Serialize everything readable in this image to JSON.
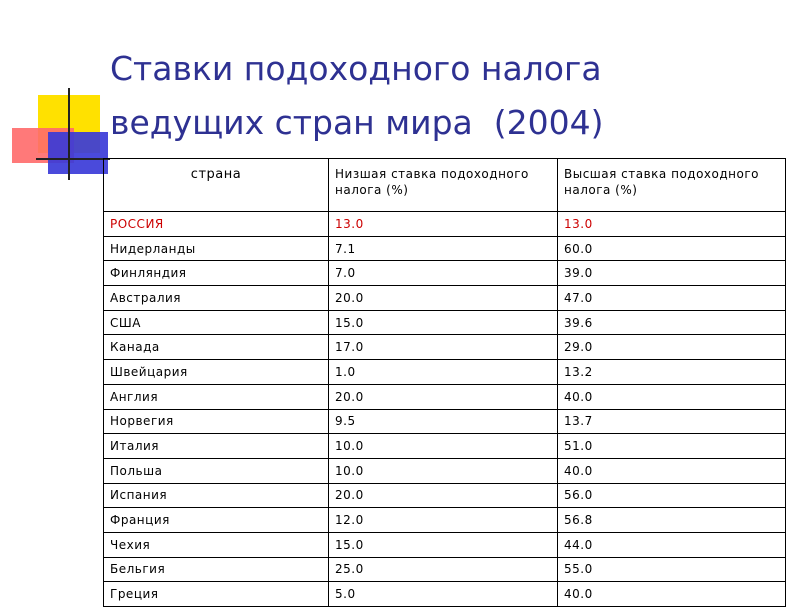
{
  "title": {
    "line1": "Ставки подоходного налога",
    "line2": "ведущих стран мира  (2004)"
  },
  "table": {
    "headers": [
      "страна",
      "Низшая ставка подоходного налога (%)",
      "Высшая ставка подоходного налога (%)"
    ],
    "rows": [
      {
        "country": "РОССИЯ",
        "min": "13.0",
        "max": "13.0"
      },
      {
        "country": "Нидерланды",
        "min": "7.1",
        "max": "60.0"
      },
      {
        "country": "Финляндия",
        "min": "7.0",
        "max": "39.0"
      },
      {
        "country": "Австралия",
        "min": "20.0",
        "max": "47.0"
      },
      {
        "country": "США",
        "min": "15.0",
        "max": "39.6"
      },
      {
        "country": "Канада",
        "min": "17.0",
        "max": "29.0"
      },
      {
        "country": "Швейцария",
        "min": "1.0",
        "max": "13.2"
      },
      {
        "country": "Англия",
        "min": "20.0",
        "max": "40.0"
      },
      {
        "country": "Норвегия",
        "min": "9.5",
        "max": "13.7"
      },
      {
        "country": "Италия",
        "min": "10.0",
        "max": "51.0"
      },
      {
        "country": "Польша",
        "min": "10.0",
        "max": "40.0"
      },
      {
        "country": "Испания",
        "min": "20.0",
        "max": "56.0"
      },
      {
        "country": "Франция",
        "min": "12.0",
        "max": "56.8"
      },
      {
        "country": "Чехия",
        "min": "15.0",
        "max": "44.0"
      },
      {
        "country": "Бельгия",
        "min": "25.0",
        "max": "55.0"
      },
      {
        "country": "Греция",
        "min": "5.0",
        "max": "40.0"
      }
    ]
  },
  "colors": {
    "title": "#2e3192",
    "highlight_row": "#cc0000",
    "decor_yellow": "#ffe100",
    "decor_red": "#ff6a6a",
    "decor_blue": "#3b3bd8"
  }
}
